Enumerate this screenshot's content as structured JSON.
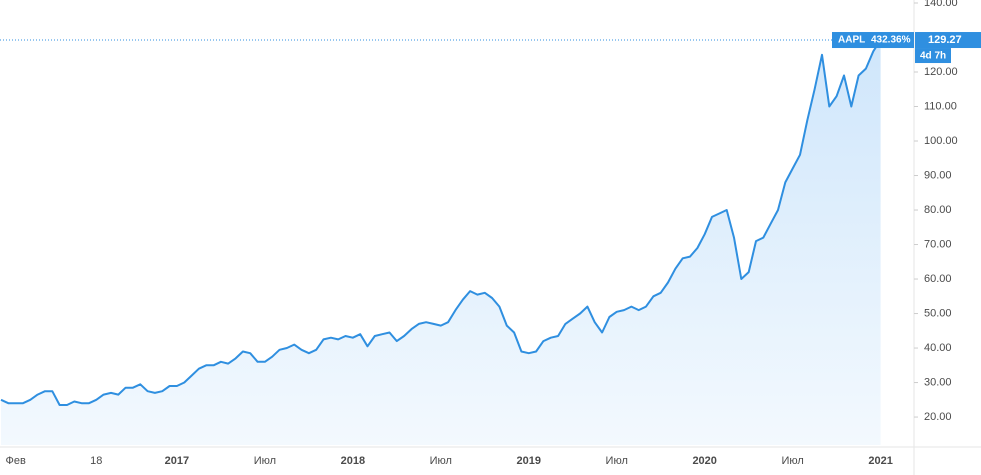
{
  "chart_data": {
    "type": "area",
    "categories": [
      null,
      null,
      "Фев",
      null,
      null,
      null,
      null,
      null,
      null,
      null,
      null,
      null,
      null,
      "18",
      null,
      null,
      null,
      null,
      null,
      null,
      null,
      null,
      null,
      null,
      "2017",
      null,
      null,
      null,
      null,
      null,
      null,
      null,
      null,
      null,
      null,
      null,
      "Июл",
      null,
      null,
      null,
      null,
      null,
      null,
      null,
      null,
      null,
      null,
      null,
      "2018",
      null,
      null,
      null,
      null,
      null,
      null,
      null,
      null,
      null,
      null,
      null,
      "Июл",
      null,
      null,
      null,
      null,
      null,
      null,
      null,
      null,
      null,
      null,
      null,
      "2019",
      null,
      null,
      null,
      null,
      null,
      null,
      null,
      null,
      null,
      null,
      null,
      "Июл",
      null,
      null,
      null,
      null,
      null,
      null,
      null,
      null,
      null,
      null,
      null,
      "2020",
      null,
      null,
      null,
      null,
      null,
      null,
      null,
      null,
      null,
      null,
      null,
      "Июл",
      null,
      null,
      null,
      null,
      null,
      null,
      null,
      null,
      null,
      null,
      null,
      "2021"
    ],
    "series": [
      {
        "name": "AAPL",
        "color": "#2f8fe0",
        "values": [
          25,
          24,
          24,
          24,
          25,
          26.5,
          27.5,
          27.5,
          23.5,
          23.5,
          24.5,
          24,
          24,
          25,
          26.5,
          27,
          26.5,
          28.5,
          28.5,
          29.5,
          27.5,
          27,
          27.5,
          29,
          29,
          30,
          32,
          34,
          35,
          35,
          36,
          35.5,
          37,
          39,
          38.5,
          36,
          36,
          37.5,
          39.5,
          40,
          41,
          39.5,
          38.5,
          39.5,
          42.5,
          43,
          42.5,
          43.5,
          43,
          44,
          40.5,
          43.5,
          44,
          44.5,
          42,
          43.5,
          45.5,
          47,
          47.5,
          47,
          46.5,
          47.5,
          51,
          54,
          56.5,
          55.5,
          56,
          54.5,
          52,
          46.5,
          44.5,
          39,
          38.5,
          39,
          42,
          43,
          43.5,
          47,
          48.5,
          50,
          52,
          47.5,
          44.5,
          49,
          50.5,
          51,
          52,
          51,
          52,
          55,
          56,
          59,
          63,
          66,
          66.5,
          69,
          73,
          78,
          79,
          80,
          72,
          60,
          62,
          71,
          72,
          76,
          80,
          88,
          92,
          96,
          106,
          115,
          125,
          110,
          113,
          119,
          110,
          119,
          121,
          126,
          129.27
        ]
      }
    ],
    "ylim": [
      11.9,
      140
    ],
    "yticks": [
      {
        "value": 20,
        "label": "20.00"
      },
      {
        "value": 30,
        "label": "30.00"
      },
      {
        "value": 40,
        "label": "40.00"
      },
      {
        "value": 50,
        "label": "50.00"
      },
      {
        "value": 60,
        "label": "60.00"
      },
      {
        "value": 70,
        "label": "70.00"
      },
      {
        "value": 80,
        "label": "80.00"
      },
      {
        "value": 90,
        "label": "90.00"
      },
      {
        "value": 100,
        "label": "100.00"
      },
      {
        "value": 110,
        "label": "110.00"
      },
      {
        "value": 120,
        "label": "120.00"
      },
      {
        "value": 140,
        "label": "140.00"
      }
    ],
    "annotations": {
      "symbol": "AAPL",
      "change": "432.36%",
      "price": "129.27",
      "countdown": "4d 7h"
    }
  }
}
